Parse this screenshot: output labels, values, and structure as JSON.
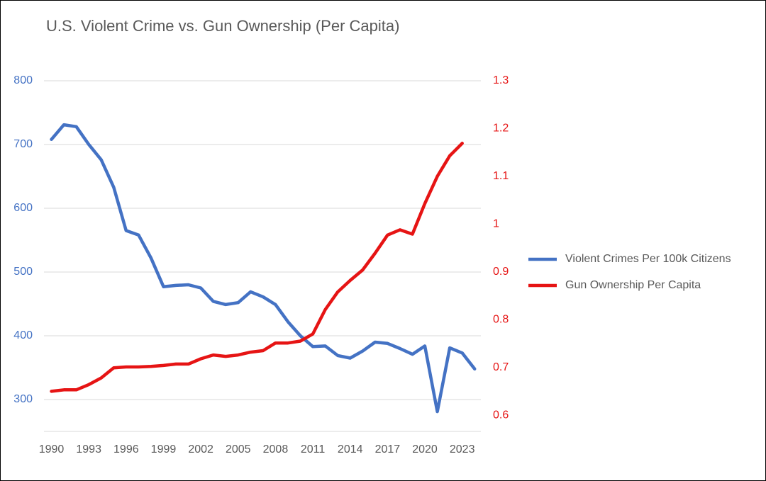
{
  "chart_data": {
    "type": "line",
    "title": "U.S. Violent Crime vs. Gun Ownership (Per Capita)",
    "x": [
      1990,
      1991,
      1992,
      1993,
      1994,
      1995,
      1996,
      1997,
      1998,
      1999,
      2000,
      2001,
      2002,
      2003,
      2004,
      2005,
      2006,
      2007,
      2008,
      2009,
      2010,
      2011,
      2012,
      2013,
      2014,
      2015,
      2016,
      2017,
      2018,
      2019,
      2020,
      2021,
      2022,
      2023,
      2024
    ],
    "xlim": [
      1989.4,
      2024.5
    ],
    "xticks": [
      1990,
      1993,
      1996,
      1999,
      2002,
      2005,
      2008,
      2011,
      2014,
      2017,
      2020,
      2023
    ],
    "ylim": [
      250,
      800
    ],
    "yticks": [
      300,
      400,
      500,
      600,
      700,
      800
    ],
    "y2lim": [
      0.566,
      1.3
    ],
    "y2ticks": [
      0.6,
      0.7,
      0.8,
      0.9,
      1,
      1.1,
      1.2,
      1.3
    ],
    "grid": true,
    "legend": "right",
    "series": [
      {
        "name": "Violent Crimes Per 100k Citizens",
        "color": "#4472c4",
        "axis": "y",
        "values": [
          708,
          731,
          728,
          700,
          676,
          633,
          565,
          558,
          522,
          477,
          479,
          480,
          475,
          454,
          449,
          452,
          469,
          461,
          449,
          422,
          400,
          383,
          384,
          369,
          365,
          376,
          390,
          388,
          380,
          371,
          384,
          281,
          381,
          373,
          348
        ]
      },
      {
        "name": "Gun Ownership Per Capita",
        "color": "#e61414",
        "axis": "y2",
        "values": [
          0.65,
          0.653,
          0.653,
          0.664,
          0.678,
          0.699,
          0.701,
          0.701,
          0.702,
          0.704,
          0.707,
          0.707,
          0.718,
          0.726,
          0.723,
          0.726,
          0.732,
          0.735,
          0.751,
          0.751,
          0.755,
          0.77,
          0.821,
          0.858,
          0.882,
          0.904,
          0.939,
          0.977,
          0.988,
          0.979,
          1.043,
          1.1,
          1.143,
          1.169,
          null
        ]
      }
    ]
  }
}
